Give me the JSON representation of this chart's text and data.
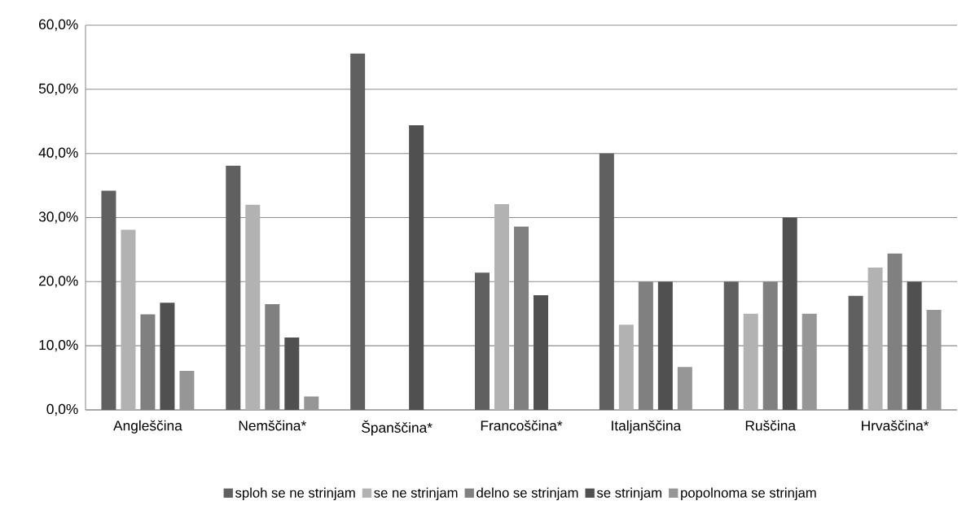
{
  "chart_data": {
    "type": "bar",
    "categories": [
      "Angleščina",
      "Nemščina*",
      "Španščina*",
      "Francoščina*",
      "Italjanščina",
      "Ruščina",
      "Hrvaščina*"
    ],
    "series": [
      {
        "name": "sploh se ne strinjam",
        "color": "#606060",
        "values": [
          34.2,
          38.1,
          55.6,
          21.4,
          40.0,
          20.0,
          17.8
        ]
      },
      {
        "name": "se ne strinjam",
        "color": "#b2b2b2",
        "values": [
          28.1,
          32.0,
          0,
          32.1,
          13.3,
          15.0,
          22.2
        ]
      },
      {
        "name": "delno se strinjam",
        "color": "#808080",
        "values": [
          14.9,
          16.5,
          0,
          28.6,
          20.0,
          20.0,
          24.4
        ]
      },
      {
        "name": "se strinjam",
        "color": "#505050",
        "values": [
          16.7,
          11.3,
          44.4,
          17.9,
          20.0,
          30.0,
          20.0
        ]
      },
      {
        "name": "popolnoma se strinjam",
        "color": "#969696",
        "values": [
          6.1,
          2.1,
          0,
          0,
          6.7,
          15.0,
          15.6
        ]
      }
    ],
    "ylim": [
      0,
      60
    ],
    "yticks": [
      {
        "value": 0,
        "label": "0,0%"
      },
      {
        "value": 10,
        "label": "10,0%"
      },
      {
        "value": 20,
        "label": "20,0%"
      },
      {
        "value": 30,
        "label": "30,0%"
      },
      {
        "value": 40,
        "label": "40,0%"
      },
      {
        "value": 50,
        "label": "50,0%"
      },
      {
        "value": 60,
        "label": "60,0%"
      }
    ],
    "grid": "y",
    "legend": "bottom"
  }
}
